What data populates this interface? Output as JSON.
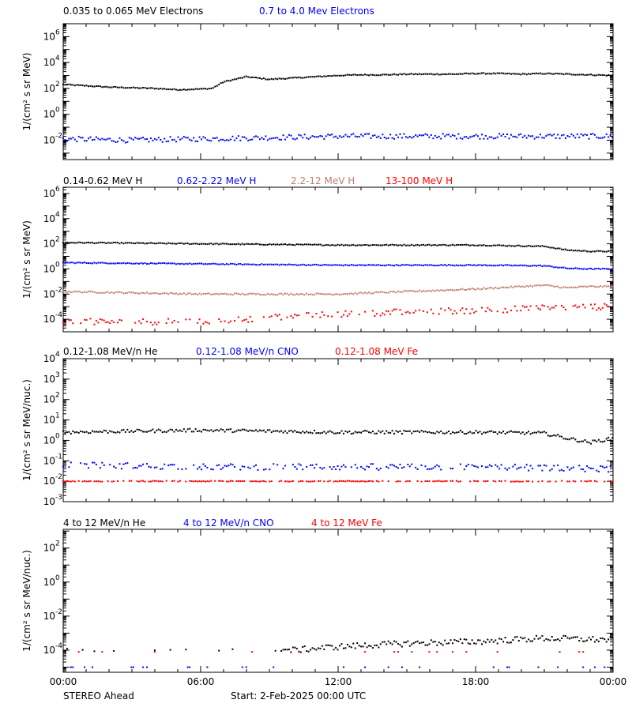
{
  "footer": {
    "spacecraft": "STEREO Ahead",
    "start": "Start:  2-Feb-2025 00:00 UTC"
  },
  "chart_data": [
    {
      "type": "scatter",
      "y_log": true,
      "ylim_exp": [
        -3.5,
        7
      ],
      "ylabel": "1/(cm² s sr MeV)",
      "y_ticks_exp": [
        6,
        4,
        2,
        0,
        -2
      ],
      "x_ticks": [
        "00:00",
        "06:00",
        "12:00",
        "18:00",
        "00:00"
      ],
      "series": [
        {
          "name": "0.035 to 0.065 MeV Electrons",
          "color": "#000000",
          "x": [
            0,
            2,
            4,
            5,
            6,
            6.5,
            7,
            8,
            9,
            10,
            11,
            12,
            13,
            14,
            15,
            16,
            17,
            18,
            19,
            20,
            21,
            22,
            23,
            24
          ],
          "y_log": [
            2.3,
            2.1,
            2.0,
            1.9,
            1.95,
            2.0,
            2.5,
            2.9,
            2.7,
            2.8,
            2.9,
            3.0,
            3.05,
            3.05,
            3.1,
            3.1,
            3.1,
            3.15,
            3.15,
            3.1,
            3.15,
            3.1,
            3.05,
            3.0
          ],
          "noise": 0.04
        },
        {
          "name": "0.7 to 4.0 Mev Electrons",
          "color": "#0000ff",
          "x": [
            0,
            3,
            6,
            9,
            12,
            15,
            18,
            21,
            24
          ],
          "y_log": [
            -1.9,
            -2.0,
            -1.9,
            -1.8,
            -1.7,
            -1.7,
            -1.7,
            -1.7,
            -1.7
          ],
          "noise": 0.2
        }
      ]
    },
    {
      "type": "scatter",
      "y_log": true,
      "ylim_exp": [
        -5,
        6.5
      ],
      "ylabel": "1/(cm² s sr MeV)",
      "y_ticks_exp": [
        6,
        4,
        2,
        0,
        -2,
        -4
      ],
      "x_ticks": [
        "00:00",
        "06:00",
        "12:00",
        "18:00",
        "00:00"
      ],
      "series": [
        {
          "name": "0.14-0.62 MeV H",
          "color": "#000000",
          "x": [
            0,
            6,
            12,
            18,
            21,
            22,
            23,
            24
          ],
          "y_log": [
            2.1,
            2.0,
            1.9,
            1.9,
            1.8,
            1.5,
            1.4,
            1.4
          ],
          "noise": 0.04
        },
        {
          "name": "0.62-2.22 MeV H",
          "color": "#0000ff",
          "x": [
            0,
            6,
            12,
            18,
            21,
            22,
            23,
            24
          ],
          "y_log": [
            0.5,
            0.4,
            0.3,
            0.3,
            0.25,
            0.05,
            0.0,
            0.0
          ],
          "noise": 0.04
        },
        {
          "name": "2.2-12 MeV H",
          "color": "#c08070",
          "x": [
            0,
            6,
            12,
            18,
            21,
            22,
            23,
            24
          ],
          "y_log": [
            -1.8,
            -2.0,
            -2.0,
            -1.6,
            -1.3,
            -1.5,
            -1.4,
            -1.4
          ],
          "noise": 0.06
        },
        {
          "name": "13-100 MeV H",
          "color": "#ff0000",
          "x": [
            0,
            6,
            10,
            12,
            15,
            18,
            21,
            24
          ],
          "y_log": [
            -4.2,
            -4.2,
            -3.8,
            -3.6,
            -3.4,
            -3.3,
            -3.1,
            -3.0
          ],
          "noise": 0.25
        }
      ]
    },
    {
      "type": "scatter",
      "y_log": true,
      "ylim_exp": [
        -3,
        4
      ],
      "ylabel": "1/(cm² s sr MeV/nuc.)",
      "y_ticks_exp": [
        4,
        3,
        2,
        1,
        0,
        -1,
        -2,
        -3
      ],
      "x_ticks": [
        "00:00",
        "06:00",
        "12:00",
        "18:00",
        "00:00"
      ],
      "series": [
        {
          "name": "0.12-1.08 MeV/n He",
          "color": "#000000",
          "x": [
            0,
            6,
            12,
            18,
            21,
            22,
            23,
            24
          ],
          "y_log": [
            0.4,
            0.5,
            0.4,
            0.4,
            0.35,
            0.1,
            -0.1,
            0.1
          ],
          "noise": 0.08
        },
        {
          "name": "0.12-1.08 MeV/n CNO",
          "color": "#0000ff",
          "x": [
            0,
            6,
            12,
            18,
            24
          ],
          "y_log": [
            -1.2,
            -1.3,
            -1.3,
            -1.3,
            -1.4
          ],
          "noise": 0.15
        },
        {
          "name": "0.12-1.08 MeV Fe",
          "color": "#ff0000",
          "x": [
            0,
            24
          ],
          "y_log": [
            -2.0,
            -2.0
          ],
          "noise": 0.02
        }
      ]
    },
    {
      "type": "scatter",
      "y_log": true,
      "ylim_exp": [
        -5.3,
        3.1
      ],
      "ylabel": "1/(cm² s sr MeV/nuc.)",
      "y_ticks_exp": [
        2,
        0,
        -2,
        -4
      ],
      "x_ticks": [
        "00:00",
        "06:00",
        "12:00",
        "18:00",
        "00:00"
      ],
      "series": [
        {
          "name": "4 to 12 MeV/n He",
          "color": "#000000",
          "x": [
            0,
            6,
            10,
            12,
            15,
            18,
            21,
            24
          ],
          "y_log": [
            -4.0,
            -4.0,
            -4.0,
            -3.8,
            -3.6,
            -3.5,
            -3.3,
            -3.4
          ],
          "noise": 0.18
        },
        {
          "name": "4 to 12 MeV/n CNO",
          "color": "#0000ff",
          "x": [
            0,
            24
          ],
          "y_log": [
            -5.0,
            -5.0
          ],
          "noise": 0.0
        },
        {
          "name": "4 to 12 MeV Fe",
          "color": "#ff0000",
          "x": [
            0,
            24
          ],
          "y_log": [
            -4.1,
            -4.1
          ],
          "noise": 0.0
        }
      ]
    }
  ]
}
